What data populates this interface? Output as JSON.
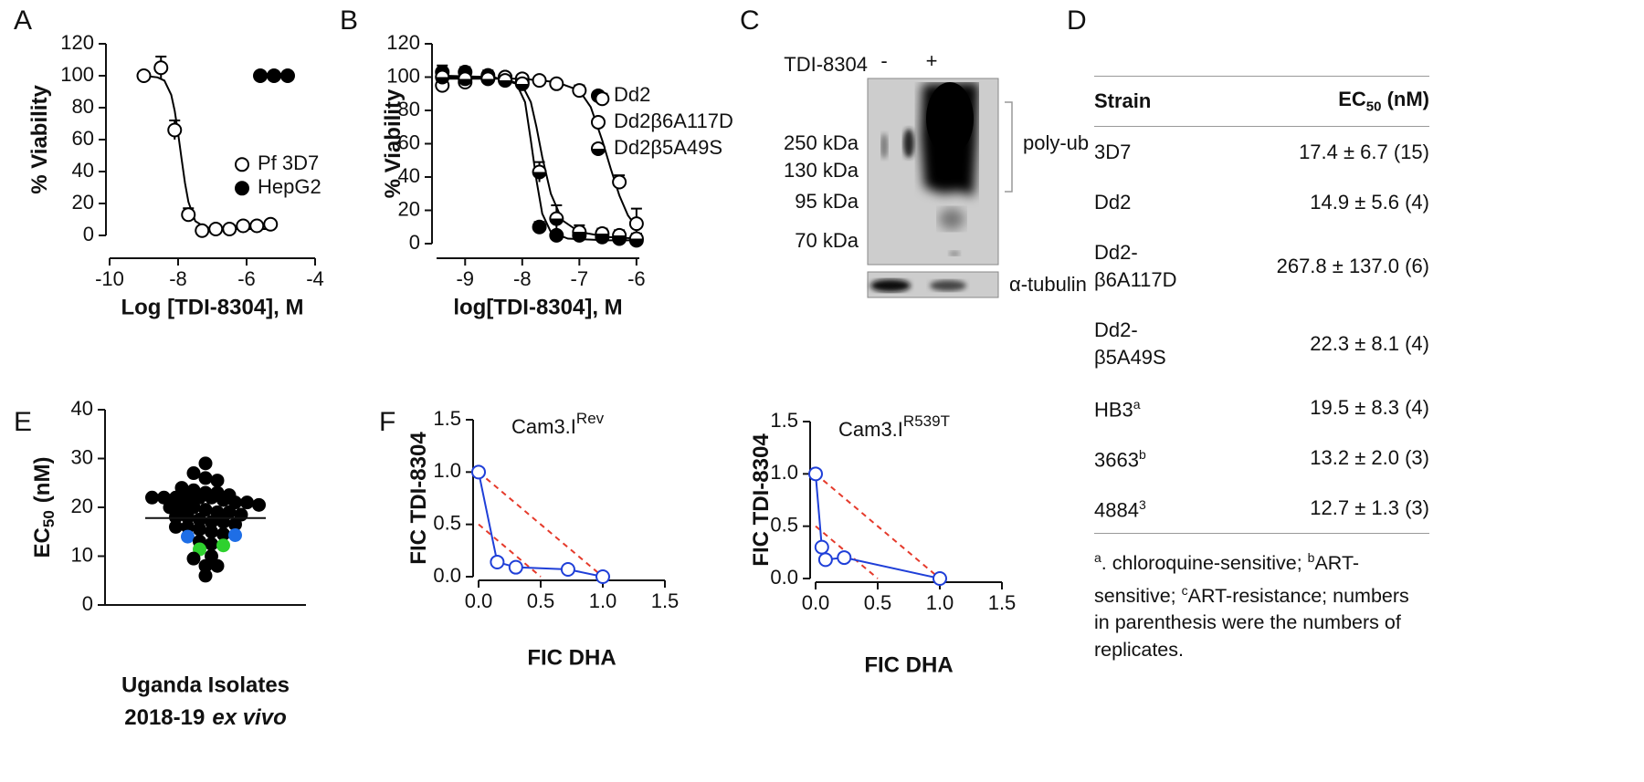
{
  "panel_labels": [
    "A",
    "B",
    "C",
    "D",
    "E",
    "F"
  ],
  "chart_data": [
    {
      "type": "scatter",
      "xlabel": "Log [TDI-8304], M",
      "ylabel": "% Viability",
      "xlim": [
        -10,
        -4
      ],
      "xticks": [
        -10,
        -8,
        -6,
        -4
      ],
      "ylim": [
        0,
        120
      ],
      "yticks": [
        0,
        20,
        40,
        60,
        80,
        100,
        120
      ],
      "legend": "center-right",
      "series": [
        {
          "name": "Pf 3D7",
          "color": "#000000",
          "marker": "open",
          "x": [
            -9,
            -8.5,
            -8.1,
            -7.7,
            -7.3,
            -6.9,
            -6.5,
            -6.1,
            -5.7,
            -5.3
          ],
          "values": [
            100,
            105,
            66,
            13,
            3,
            4,
            4,
            6,
            6,
            7
          ],
          "errors": [
            0,
            7,
            6,
            4,
            1,
            1,
            1,
            1,
            1,
            1
          ],
          "fit_x": [
            -9,
            -8.6,
            -8.4,
            -8.2,
            -8.1,
            -8.0,
            -7.9,
            -7.8,
            -7.7,
            -7.5,
            -7.2,
            -6.8,
            -6,
            -5.3
          ],
          "fit_y": [
            100,
            99,
            97,
            88,
            78,
            64,
            48,
            33,
            21,
            9,
            5,
            4,
            4,
            4
          ]
        },
        {
          "name": "HepG2",
          "color": "#000000",
          "marker": "filled",
          "x": [
            -5.6,
            -5.2,
            -4.8
          ],
          "values": [
            100,
            100,
            100
          ]
        }
      ]
    },
    {
      "type": "scatter",
      "xlabel": "log[TDI-8304], M",
      "ylabel": "% Viability",
      "xlim": [
        -9.5,
        -5.95
      ],
      "xticks": [
        -9,
        -8,
        -7,
        -6
      ],
      "ylim": [
        0,
        120
      ],
      "yticks": [
        0,
        20,
        40,
        60,
        80,
        100,
        120
      ],
      "legend": "upper-right",
      "series": [
        {
          "name": "Dd2",
          "color": "#000000",
          "marker": "filled",
          "x": [
            -9.4,
            -9.0,
            -8.6,
            -8.3,
            -8.0,
            -7.7,
            -7.4,
            -7.0,
            -6.6,
            -6.3,
            -6.0
          ],
          "values": [
            103,
            103,
            101,
            100,
            97,
            10,
            5,
            5,
            4,
            3,
            2
          ],
          "errors": [
            4,
            3,
            3,
            2,
            3,
            3,
            2,
            2,
            2,
            2,
            2
          ],
          "fit_x": [
            -9.5,
            -8.5,
            -8.1,
            -7.95,
            -7.85,
            -7.75,
            -7.65,
            -7.5,
            -7.2,
            -6.5,
            -5.95
          ],
          "fit_y": [
            101,
            100,
            96,
            85,
            62,
            38,
            18,
            7,
            3,
            2,
            2
          ]
        },
        {
          "name": "Dd2β6A117D",
          "color": "#000000",
          "marker": "open",
          "x": [
            -9.4,
            -9.0,
            -8.6,
            -8.3,
            -8.0,
            -7.7,
            -7.4,
            -7.0,
            -6.6,
            -6.3,
            -6.0
          ],
          "values": [
            95,
            97,
            100,
            100,
            99,
            98,
            96,
            92,
            87,
            37,
            12
          ],
          "errors": [
            3,
            3,
            2,
            2,
            2,
            2,
            2,
            3,
            3,
            4,
            9
          ],
          "fit_x": [
            -9.5,
            -8,
            -7.4,
            -7.0,
            -6.8,
            -6.6,
            -6.45,
            -6.3,
            -6.15,
            -6.0,
            -5.95
          ],
          "fit_y": [
            99,
            99,
            97,
            92,
            82,
            62,
            45,
            29,
            17,
            10,
            8
          ]
        },
        {
          "name": "Dd2β5A49S",
          "color": "#000000",
          "marker": "half",
          "x": [
            -9.4,
            -9.0,
            -8.6,
            -8.3,
            -8.0,
            -7.7,
            -7.4,
            -7.0,
            -6.6,
            -6.3,
            -6.0
          ],
          "values": [
            100,
            99,
            99,
            98,
            96,
            43,
            15,
            7,
            6,
            5,
            3
          ],
          "errors": [
            3,
            3,
            2,
            2,
            3,
            6,
            8,
            4,
            3,
            3,
            3
          ],
          "fit_x": [
            -9.5,
            -8.3,
            -8.0,
            -7.85,
            -7.75,
            -7.65,
            -7.5,
            -7.3,
            -7.0,
            -6.5,
            -5.95
          ],
          "fit_y": [
            100,
            99,
            95,
            85,
            70,
            52,
            30,
            14,
            7,
            4,
            3
          ]
        }
      ]
    },
    {
      "type": "strip",
      "ylabel": "EC",
      "ylabel_sub": "50",
      "ylabel_unit": "(nM)",
      "xlabel": "Uganda Isolates",
      "xlabel_line2": "2018-19",
      "xlabel_line2_italic": "ex vivo",
      "ylim": [
        0,
        40
      ],
      "yticks": [
        0,
        10,
        20,
        30,
        40
      ],
      "center_line": 17.8,
      "series": [
        {
          "color": "#000000",
          "values": [
            29,
            27,
            26,
            25.5,
            24,
            23.5,
            23,
            23,
            22.5,
            22,
            22,
            22,
            22,
            22,
            22,
            21.5,
            21,
            21,
            20.5,
            20,
            20,
            20,
            19.5,
            19,
            19,
            18.5,
            18,
            18,
            17.5,
            17,
            17,
            16.5,
            16,
            16,
            15.5,
            15,
            14.5,
            13,
            12.5,
            10,
            9.5,
            8,
            8,
            6
          ]
        },
        {
          "color": "#1e6ee6",
          "values": [
            14,
            14.3
          ]
        },
        {
          "color": "#2ed12e",
          "values": [
            11.4,
            12.2
          ]
        }
      ]
    },
    {
      "type": "line",
      "title": "Cam3.I",
      "title_sup": "Rev",
      "xlabel": "FIC DHA",
      "ylabel": "FIC TDI-8304",
      "xlim": [
        0,
        1.5
      ],
      "xticks": [
        {
          "value": 0,
          "label": "0.0"
        },
        {
          "value": 0.5,
          "label": "0.5"
        },
        {
          "value": 1,
          "label": "1.0"
        },
        {
          "value": 1.5,
          "label": "1.5"
        }
      ],
      "ylim": [
        0,
        1.5
      ],
      "yticks": [
        {
          "value": 0,
          "label": "0.0"
        },
        {
          "value": 0.5,
          "label": "0.5"
        },
        {
          "value": 1,
          "label": "1.0"
        },
        {
          "value": 1.5,
          "label": "1.5"
        }
      ],
      "reference_color": "#e53a2b",
      "reference_lines": [
        {
          "x": [
            0,
            1
          ],
          "y": [
            1,
            0
          ]
        },
        {
          "x": [
            0,
            0.5
          ],
          "y": [
            0.5,
            0
          ]
        }
      ],
      "series": [
        {
          "color": "#1f3fd8",
          "x": [
            0,
            0.15,
            0.3,
            0.72,
            1.0
          ],
          "values": [
            1.0,
            0.14,
            0.09,
            0.07,
            0.0
          ]
        }
      ]
    },
    {
      "type": "line",
      "title": "Cam3.I",
      "title_sup": "R539T",
      "xlabel": "FIC DHA",
      "ylabel": "FIC TDI-8304",
      "xlim": [
        0,
        1.5
      ],
      "xticks": [
        {
          "value": 0,
          "label": "0.0"
        },
        {
          "value": 0.5,
          "label": "0.5"
        },
        {
          "value": 1,
          "label": "1.0"
        },
        {
          "value": 1.5,
          "label": "1.5"
        }
      ],
      "ylim": [
        0,
        1.5
      ],
      "yticks": [
        {
          "value": 0,
          "label": "0.0"
        },
        {
          "value": 0.5,
          "label": "0.5"
        },
        {
          "value": 1,
          "label": "1.0"
        },
        {
          "value": 1.5,
          "label": "1.5"
        }
      ],
      "reference_color": "#e53a2b",
      "reference_lines": [
        {
          "x": [
            0,
            1
          ],
          "y": [
            1,
            0
          ]
        },
        {
          "x": [
            0,
            0.5
          ],
          "y": [
            0.5,
            0
          ]
        }
      ],
      "series": [
        {
          "color": "#1f3fd8",
          "x": [
            0,
            0.05,
            0.08,
            0.23,
            1.0
          ],
          "values": [
            1.0,
            0.3,
            0.18,
            0.2,
            0.0
          ]
        }
      ]
    }
  ],
  "blot": {
    "treatment": "TDI-8304",
    "lanes": [
      "-",
      "+"
    ],
    "markers": [
      "250 kDa",
      "130 kDa",
      "95 kDa",
      "70 kDa"
    ],
    "bracket": "poly-ub",
    "loading": "α-tubulin"
  },
  "table": {
    "header": {
      "strain": "Strain",
      "ec": "EC",
      "ec_sub": "50",
      "ec_unit": "(nM)"
    },
    "rows": [
      {
        "strain": "3D7",
        "ec50": "17.4 ± 6.7 (15)"
      },
      {
        "strain": "Dd2",
        "ec50": "14.9 ± 5.6 (4)"
      },
      {
        "strain": "Dd2-β6A117D",
        "ec50": "267.8 ± 137.0 (6)"
      },
      {
        "strain": "Dd2-β5A49S",
        "ec50": "22.3 ± 8.1 (4)"
      },
      {
        "strain": "HB3",
        "sup": "a",
        "ec50": "19.5 ± 8.3 (4)"
      },
      {
        "strain": "3663",
        "sup": "b",
        "ec50": "13.2 ± 2.0 (3)"
      },
      {
        "strain": "4884",
        "sup": "3",
        "ec50": "12.7 ± 1.3 (3)"
      }
    ],
    "footnote": [
      {
        "sup": "a",
        "text": ". chloroquine-sensitive; "
      },
      {
        "sup": "b",
        "text": "ART-sensitive; "
      },
      {
        "sup": "c",
        "text": "ART-resistance; numbers in parenthesis were the numbers of replicates."
      }
    ]
  }
}
